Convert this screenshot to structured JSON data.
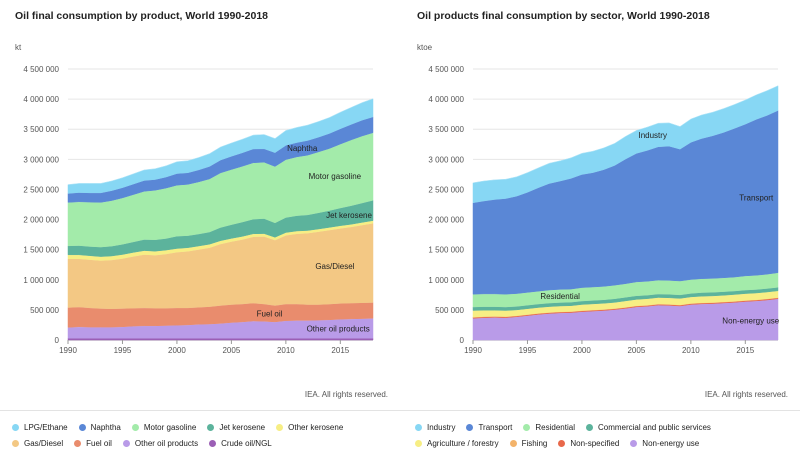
{
  "chart_data": [
    {
      "type": "area",
      "stacked": true,
      "title": "Oil final consumption by product, World 1990-2018",
      "ylabel": "kt",
      "credit": "IEA. All rights reserved.",
      "ylim": [
        0,
        4500000
      ],
      "yticks": [
        0,
        500000,
        1000000,
        1500000,
        2000000,
        2500000,
        3000000,
        3500000,
        4000000,
        4500000
      ],
      "ytick_labels": [
        "0",
        "500 000",
        "1 000 000",
        "1 500 000",
        "2 000 000",
        "2 500 000",
        "3 000 000",
        "3 500 000",
        "4 000 000",
        "4 500 000"
      ],
      "xlim": [
        1990,
        2018
      ],
      "xticks": [
        1990,
        1995,
        2000,
        2005,
        2010,
        2015
      ],
      "x": [
        1990,
        1991,
        1992,
        1993,
        1994,
        1995,
        1996,
        1997,
        1998,
        1999,
        2000,
        2001,
        2002,
        2003,
        2004,
        2005,
        2006,
        2007,
        2008,
        2009,
        2010,
        2011,
        2012,
        2013,
        2014,
        2015,
        2016,
        2017,
        2018
      ],
      "series": [
        {
          "name": "Crude oil/NGL",
          "color": "#9b5fb5",
          "values": [
            30000,
            30000,
            30000,
            30000,
            30000,
            30000,
            30000,
            30000,
            30000,
            30000,
            30000,
            30000,
            30000,
            30000,
            30000,
            30000,
            30000,
            30000,
            30000,
            30000,
            30000,
            30000,
            30000,
            30000,
            30000,
            30000,
            30000,
            30000,
            30000
          ]
        },
        {
          "name": "Other oil products",
          "color": "#b99be8",
          "values": [
            180000,
            190000,
            185000,
            185000,
            185000,
            190000,
            200000,
            205000,
            205000,
            210000,
            215000,
            220000,
            230000,
            235000,
            245000,
            260000,
            270000,
            285000,
            280000,
            270000,
            290000,
            295000,
            295000,
            300000,
            305000,
            315000,
            320000,
            325000,
            330000
          ]
        },
        {
          "name": "Fuel oil",
          "color": "#e98c6d",
          "values": [
            330000,
            330000,
            320000,
            310000,
            305000,
            305000,
            300000,
            300000,
            295000,
            290000,
            290000,
            285000,
            285000,
            290000,
            300000,
            300000,
            300000,
            300000,
            290000,
            275000,
            280000,
            275000,
            265000,
            260000,
            262000,
            265000,
            265000,
            265000,
            265000
          ]
        },
        {
          "name": "Gas/Diesel",
          "color": "#f3c884",
          "values": [
            810000,
            800000,
            800000,
            795000,
            810000,
            830000,
            860000,
            885000,
            880000,
            900000,
            925000,
            940000,
            960000,
            980000,
            1020000,
            1045000,
            1070000,
            1100000,
            1120000,
            1085000,
            1140000,
            1165000,
            1185000,
            1210000,
            1230000,
            1245000,
            1265000,
            1290000,
            1315000
          ]
        },
        {
          "name": "Other kerosene",
          "color": "#f7ee84",
          "values": [
            65000,
            65000,
            65000,
            65000,
            65000,
            65000,
            65000,
            65000,
            65000,
            62000,
            60000,
            58000,
            56000,
            55000,
            54000,
            52000,
            50000,
            48000,
            47000,
            46000,
            45000,
            45000,
            44000,
            44000,
            43000,
            43000,
            42000,
            42000,
            42000
          ]
        },
        {
          "name": "Jet kerosene",
          "color": "#5cb39c",
          "values": [
            150000,
            155000,
            155000,
            160000,
            165000,
            170000,
            175000,
            185000,
            190000,
            195000,
            205000,
            200000,
            200000,
            205000,
            220000,
            230000,
            240000,
            245000,
            250000,
            240000,
            250000,
            255000,
            260000,
            270000,
            280000,
            295000,
            310000,
            325000,
            340000
          ]
        },
        {
          "name": "Motor gasoline",
          "color": "#a3ebaa",
          "values": [
            720000,
            725000,
            735000,
            740000,
            755000,
            770000,
            785000,
            800000,
            820000,
            835000,
            845000,
            850000,
            865000,
            880000,
            905000,
            915000,
            925000,
            935000,
            935000,
            935000,
            960000,
            975000,
            990000,
            1010000,
            1030000,
            1060000,
            1090000,
            1110000,
            1120000
          ]
        },
        {
          "name": "Naphtha",
          "color": "#5a87d6",
          "values": [
            150000,
            155000,
            155000,
            160000,
            165000,
            170000,
            175000,
            180000,
            180000,
            185000,
            195000,
            195000,
            200000,
            210000,
            215000,
            220000,
            225000,
            230000,
            225000,
            230000,
            240000,
            240000,
            245000,
            245000,
            250000,
            255000,
            260000,
            265000,
            265000
          ]
        },
        {
          "name": "LPG/Ethane",
          "color": "#87d7f4",
          "values": [
            145000,
            150000,
            155000,
            155000,
            160000,
            165000,
            170000,
            175000,
            180000,
            185000,
            195000,
            200000,
            205000,
            210000,
            215000,
            220000,
            225000,
            230000,
            235000,
            235000,
            245000,
            250000,
            255000,
            260000,
            265000,
            275000,
            280000,
            290000,
            300000
          ]
        }
      ],
      "annotations": [
        {
          "text": "Naphtha",
          "series": "Naphtha",
          "x": 2011.5
        },
        {
          "text": "Motor gasoline",
          "series": "Motor gasoline",
          "x": 2014.5
        },
        {
          "text": "Jet kerosene",
          "series": "Jet kerosene",
          "x": 2015.8
        },
        {
          "text": "Gas/Diesel",
          "series": "Gas/Diesel",
          "x": 2014.5
        },
        {
          "text": "Fuel oil",
          "series": "Fuel oil",
          "x": 2008.5
        },
        {
          "text": "Other oil products",
          "series": "Other oil products",
          "x": 2014.8
        }
      ],
      "legend": {
        "position": "bottom",
        "rows": [
          [
            "LPG/Ethane",
            "Naphtha",
            "Motor gasoline",
            "Jet kerosene",
            "Other kerosene"
          ],
          [
            "Gas/Diesel",
            "Fuel oil",
            "Other oil products",
            "Crude oil/NGL"
          ]
        ]
      }
    },
    {
      "type": "area",
      "stacked": true,
      "title": "Oil products final consumption by sector, World 1990-2018",
      "ylabel": "ktoe",
      "credit": "IEA. All rights reserved.",
      "ylim": [
        0,
        4500000
      ],
      "yticks": [
        0,
        500000,
        1000000,
        1500000,
        2000000,
        2500000,
        3000000,
        3500000,
        4000000,
        4500000
      ],
      "ytick_labels": [
        "0",
        "500 000",
        "1 000 000",
        "1 500 000",
        "2 000 000",
        "2 500 000",
        "3 000 000",
        "3 500 000",
        "4 000 000",
        "4 500 000"
      ],
      "xlim": [
        1990,
        2018
      ],
      "xticks": [
        1990,
        1995,
        2000,
        2005,
        2010,
        2015
      ],
      "x": [
        1990,
        1991,
        1992,
        1993,
        1994,
        1995,
        1996,
        1997,
        1998,
        1999,
        2000,
        2001,
        2002,
        2003,
        2004,
        2005,
        2006,
        2007,
        2008,
        2009,
        2010,
        2011,
        2012,
        2013,
        2014,
        2015,
        2016,
        2017,
        2018
      ],
      "series": [
        {
          "name": "Non-energy use",
          "color": "#b99be8",
          "values": [
            360000,
            370000,
            375000,
            370000,
            385000,
            405000,
            425000,
            440000,
            450000,
            455000,
            470000,
            480000,
            490000,
            505000,
            525000,
            550000,
            560000,
            580000,
            575000,
            565000,
            590000,
            600000,
            605000,
            615000,
            625000,
            640000,
            650000,
            665000,
            685000
          ]
        },
        {
          "name": "Non-specified",
          "color": "#e8684a",
          "values": [
            15000,
            15000,
            15000,
            15000,
            15000,
            15000,
            15000,
            15000,
            15000,
            15000,
            15000,
            15000,
            15000,
            15000,
            15000,
            15000,
            15000,
            15000,
            15000,
            15000,
            15000,
            15000,
            15000,
            15000,
            15000,
            15000,
            15000,
            15000,
            15000
          ]
        },
        {
          "name": "Fishing",
          "color": "#f3b36a",
          "values": [
            5000,
            5000,
            5000,
            5000,
            5000,
            5000,
            5000,
            5000,
            5000,
            5000,
            5000,
            5000,
            5000,
            5000,
            5000,
            5000,
            5000,
            5000,
            5000,
            5000,
            5000,
            5000,
            5000,
            5000,
            5000,
            5000,
            5000,
            5000,
            5000
          ]
        },
        {
          "name": "Agriculture / forestry",
          "color": "#f7ee84",
          "values": [
            110000,
            105000,
            100000,
            100000,
            95000,
            95000,
            95000,
            95000,
            95000,
            95000,
            100000,
            100000,
            100000,
            100000,
            105000,
            105000,
            105000,
            105000,
            105000,
            105000,
            105000,
            108000,
            108000,
            108000,
            110000,
            110000,
            110000,
            112000,
            112000
          ]
        },
        {
          "name": "Commercial and public services",
          "color": "#5cb39c",
          "values": [
            60000,
            60000,
            60000,
            60000,
            60000,
            60000,
            60000,
            60000,
            60000,
            60000,
            60000,
            60000,
            60000,
            60000,
            60000,
            60000,
            60000,
            60000,
            60000,
            60000,
            60000,
            60000,
            60000,
            60000,
            60000,
            60000,
            60000,
            60000,
            60000
          ]
        },
        {
          "name": "Residential",
          "color": "#a3ebaa",
          "values": [
            210000,
            210000,
            210000,
            210000,
            210000,
            210000,
            210000,
            215000,
            215000,
            215000,
            220000,
            220000,
            220000,
            225000,
            225000,
            230000,
            230000,
            230000,
            230000,
            230000,
            230000,
            230000,
            230000,
            230000,
            230000,
            235000,
            235000,
            235000,
            240000
          ]
        },
        {
          "name": "Transport",
          "color": "#5a87d6",
          "values": [
            1520000,
            1545000,
            1570000,
            1590000,
            1620000,
            1665000,
            1720000,
            1770000,
            1800000,
            1840000,
            1880000,
            1900000,
            1940000,
            1990000,
            2070000,
            2135000,
            2175000,
            2215000,
            2230000,
            2190000,
            2280000,
            2330000,
            2370000,
            2415000,
            2470000,
            2520000,
            2590000,
            2640000,
            2695000
          ]
        },
        {
          "name": "Industry",
          "color": "#87d7f4",
          "values": [
            330000,
            330000,
            325000,
            320000,
            320000,
            325000,
            330000,
            335000,
            335000,
            340000,
            350000,
            355000,
            360000,
            365000,
            375000,
            380000,
            385000,
            390000,
            385000,
            375000,
            385000,
            390000,
            390000,
            395000,
            395000,
            400000,
            405000,
            410000,
            410000
          ]
        }
      ],
      "annotations": [
        {
          "text": "Industry",
          "series": "Industry",
          "x": 2006.5
        },
        {
          "text": "Transport",
          "series": "Transport",
          "x": 2016
        },
        {
          "text": "Residential",
          "series": "Residential",
          "x": 1998
        },
        {
          "text": "Non-energy use",
          "series": "Non-energy use",
          "x": 2015.5
        }
      ],
      "legend": {
        "position": "bottom",
        "rows": [
          [
            "Industry",
            "Transport",
            "Residential",
            "Commercial and public services"
          ],
          [
            "Agriculture / forestry",
            "Fishing",
            "Non-specified",
            "Non-energy use"
          ]
        ]
      }
    }
  ]
}
